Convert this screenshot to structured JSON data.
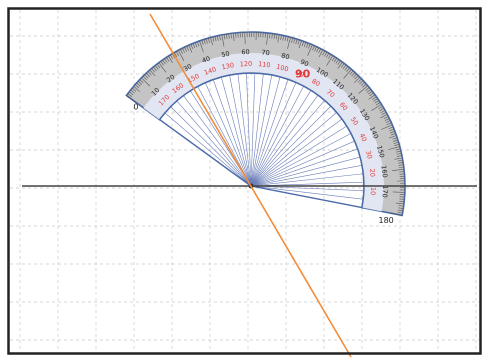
{
  "protractor": {
    "outer_labels": [
      "10",
      "20",
      "30",
      "40",
      "50",
      "60",
      "70",
      "80",
      "90",
      "100",
      "110",
      "120",
      "130",
      "140",
      "150",
      "160",
      "170"
    ],
    "inner_labels": [
      "170",
      "160",
      "150",
      "140",
      "130",
      "120",
      "110",
      "100",
      "90",
      "80",
      "70",
      "60",
      "50",
      "40",
      "30",
      "20",
      "10"
    ],
    "center_label": "90",
    "end_label_top": "0",
    "end_label_bottom": "180"
  },
  "colors": {
    "grid": "#c9c9c9",
    "frame": "#222222",
    "protractor_fill": "#c4c4c4",
    "protractor_band": "#e2e6f2",
    "ray": "#6a7db8",
    "inner_scale_text": "#e23a3a",
    "orange_line": "#f28c3a",
    "horizontal_line": "#444444"
  },
  "icons": {
    "center_marker": "center-dot-icon"
  }
}
